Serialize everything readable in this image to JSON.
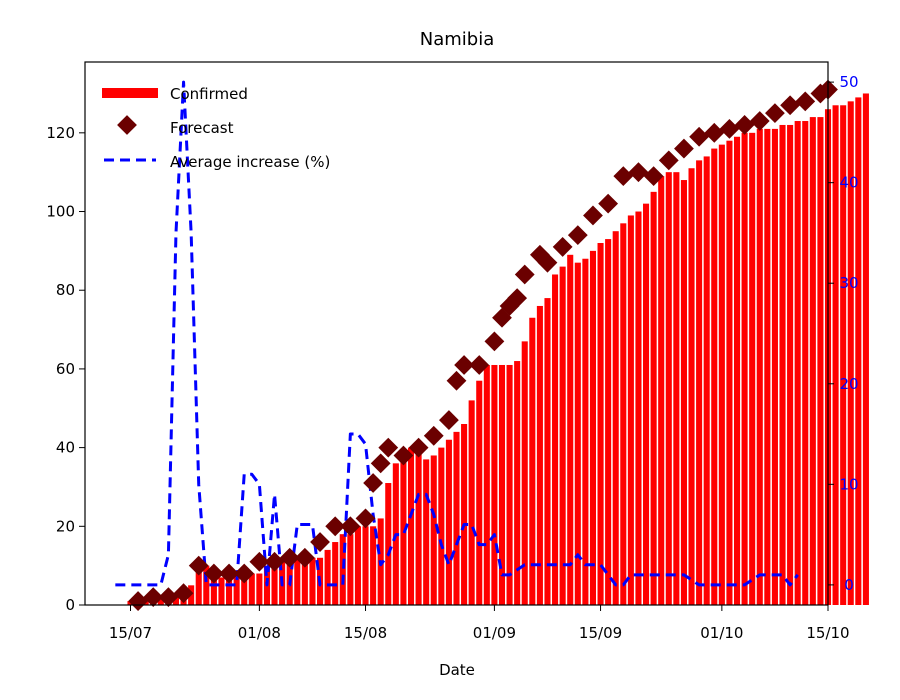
{
  "chart_data": {
    "type": "bar",
    "title": "Namibia",
    "xlabel": "Date",
    "ylabel": "",
    "ylabel_right": "",
    "x_start": "2020-07-12",
    "x_range": [
      "2020-07-09",
      "2020-10-15"
    ],
    "x_ticks": [
      "15/07",
      "01/08",
      "15/08",
      "01/09",
      "15/09",
      "01/10",
      "15/10"
    ],
    "ylim": [
      0,
      138
    ],
    "y_ticks": [
      0,
      20,
      40,
      60,
      80,
      100,
      120
    ],
    "ylim_right": [
      -2,
      52
    ],
    "y_ticks_right": [
      0,
      10,
      20,
      30,
      40,
      50
    ],
    "legend_position": "upper-left",
    "series": [
      {
        "name": "Confirmed",
        "kind": "bar",
        "color": "#ff0000",
        "values": [
          0,
          0,
          0,
          1,
          2,
          2,
          2,
          2,
          2,
          3,
          3,
          5,
          10,
          10,
          8,
          7,
          7,
          8,
          8,
          8,
          8,
          10,
          11,
          11,
          11,
          12,
          12,
          12,
          12,
          14,
          16,
          18,
          18,
          20,
          20,
          20,
          22,
          31,
          36,
          38,
          40,
          39,
          37,
          38,
          40,
          42,
          44,
          46,
          52,
          57,
          61,
          61,
          61,
          61,
          62,
          67,
          73,
          76,
          78,
          84,
          86,
          89,
          87,
          88,
          90,
          92,
          93,
          95,
          97,
          99,
          100,
          102,
          105,
          109,
          110,
          110,
          108,
          111,
          113,
          114,
          116,
          117,
          118,
          119,
          120,
          120,
          121,
          121,
          121,
          122,
          122,
          123,
          123,
          124,
          124,
          126,
          127,
          127,
          128,
          129,
          130
        ]
      },
      {
        "name": "Forecast",
        "kind": "marker",
        "color": "#6b0000",
        "points": [
          [
            "2020-07-16",
            1
          ],
          [
            "2020-07-18",
            2
          ],
          [
            "2020-07-20",
            2
          ],
          [
            "2020-07-22",
            3
          ],
          [
            "2020-07-24",
            10
          ],
          [
            "2020-07-26",
            8
          ],
          [
            "2020-07-28",
            8
          ],
          [
            "2020-07-30",
            8
          ],
          [
            "2020-08-01",
            11
          ],
          [
            "2020-08-03",
            11
          ],
          [
            "2020-08-05",
            12
          ],
          [
            "2020-08-07",
            12
          ],
          [
            "2020-08-09",
            16
          ],
          [
            "2020-08-11",
            20
          ],
          [
            "2020-08-13",
            20
          ],
          [
            "2020-08-15",
            22
          ],
          [
            "2020-08-16",
            31
          ],
          [
            "2020-08-17",
            36
          ],
          [
            "2020-08-18",
            40
          ],
          [
            "2020-08-20",
            38
          ],
          [
            "2020-08-22",
            40
          ],
          [
            "2020-08-24",
            43
          ],
          [
            "2020-08-26",
            47
          ],
          [
            "2020-08-27",
            57
          ],
          [
            "2020-08-28",
            61
          ],
          [
            "2020-08-30",
            61
          ],
          [
            "2020-09-01",
            67
          ],
          [
            "2020-09-02",
            73
          ],
          [
            "2020-09-03",
            76
          ],
          [
            "2020-09-04",
            78
          ],
          [
            "2020-09-05",
            84
          ],
          [
            "2020-09-07",
            89
          ],
          [
            "2020-09-08",
            87
          ],
          [
            "2020-09-10",
            91
          ],
          [
            "2020-09-12",
            94
          ],
          [
            "2020-09-14",
            99
          ],
          [
            "2020-09-16",
            102
          ],
          [
            "2020-09-18",
            109
          ],
          [
            "2020-09-20",
            110
          ],
          [
            "2020-09-22",
            109
          ],
          [
            "2020-09-24",
            113
          ],
          [
            "2020-09-26",
            116
          ],
          [
            "2020-09-28",
            119
          ],
          [
            "2020-09-30",
            120
          ],
          [
            "2020-10-02",
            121
          ],
          [
            "2020-10-04",
            122
          ],
          [
            "2020-10-06",
            123
          ],
          [
            "2020-10-08",
            125
          ],
          [
            "2020-10-10",
            127
          ],
          [
            "2020-10-12",
            128
          ],
          [
            "2020-10-14",
            130
          ],
          [
            "2020-10-15",
            131
          ]
        ]
      },
      {
        "name": "Average increase (%)",
        "kind": "line",
        "axis": "right",
        "color": "#0000ff",
        "points": [
          [
            "2020-07-13",
            0
          ],
          [
            "2020-07-15",
            0
          ],
          [
            "2020-07-18",
            0
          ],
          [
            "2020-07-19",
            0
          ],
          [
            "2020-07-20",
            3
          ],
          [
            "2020-07-21",
            35
          ],
          [
            "2020-07-22",
            50
          ],
          [
            "2020-07-23",
            35
          ],
          [
            "2020-07-24",
            10
          ],
          [
            "2020-07-25",
            0
          ],
          [
            "2020-07-29",
            0
          ],
          [
            "2020-07-30",
            11
          ],
          [
            "2020-07-31",
            11
          ],
          [
            "2020-08-01",
            10
          ],
          [
            "2020-08-02",
            0
          ],
          [
            "2020-08-03",
            9
          ],
          [
            "2020-08-04",
            0
          ],
          [
            "2020-08-05",
            0
          ],
          [
            "2020-08-06",
            6
          ],
          [
            "2020-08-08",
            6
          ],
          [
            "2020-08-09",
            0
          ],
          [
            "2020-08-12",
            0
          ],
          [
            "2020-08-13",
            15
          ],
          [
            "2020-08-14",
            15
          ],
          [
            "2020-08-15",
            14
          ],
          [
            "2020-08-16",
            7
          ],
          [
            "2020-08-17",
            2
          ],
          [
            "2020-08-18",
            3
          ],
          [
            "2020-08-19",
            5
          ],
          [
            "2020-08-20",
            5
          ],
          [
            "2020-08-21",
            7
          ],
          [
            "2020-08-22",
            9
          ],
          [
            "2020-08-23",
            9
          ],
          [
            "2020-08-24",
            7
          ],
          [
            "2020-08-25",
            4
          ],
          [
            "2020-08-26",
            2
          ],
          [
            "2020-08-27",
            4
          ],
          [
            "2020-08-28",
            6
          ],
          [
            "2020-08-29",
            6
          ],
          [
            "2020-08-30",
            4
          ],
          [
            "2020-08-31",
            4
          ],
          [
            "2020-09-01",
            5
          ],
          [
            "2020-09-02",
            1
          ],
          [
            "2020-09-03",
            1
          ],
          [
            "2020-09-05",
            2
          ],
          [
            "2020-09-08",
            2
          ],
          [
            "2020-09-11",
            2
          ],
          [
            "2020-09-12",
            3
          ],
          [
            "2020-09-13",
            2
          ],
          [
            "2020-09-15",
            2
          ],
          [
            "2020-09-16",
            1
          ],
          [
            "2020-09-17",
            0
          ],
          [
            "2020-09-18",
            0
          ],
          [
            "2020-09-19",
            1
          ],
          [
            "2020-09-21",
            1
          ],
          [
            "2020-09-23",
            1
          ],
          [
            "2020-09-24",
            1
          ],
          [
            "2020-09-26",
            1
          ],
          [
            "2020-09-28",
            0
          ],
          [
            "2020-10-01",
            0
          ],
          [
            "2020-10-04",
            0
          ],
          [
            "2020-10-06",
            1
          ],
          [
            "2020-10-08",
            1
          ],
          [
            "2020-10-09",
            1
          ],
          [
            "2020-10-10",
            0
          ],
          [
            "2020-10-11",
            1
          ]
        ]
      }
    ]
  }
}
